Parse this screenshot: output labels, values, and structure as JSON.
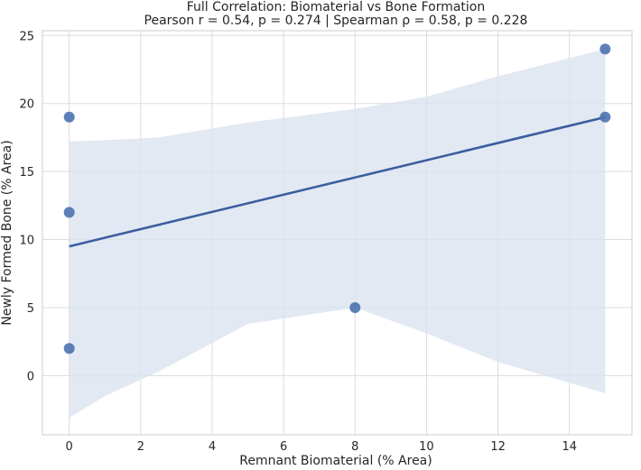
{
  "chart_data": {
    "type": "scatter",
    "title": "Full Correlation: Biomaterial vs Bone Formation",
    "subtitle": "Pearson r = 0.54, p = 0.274 | Spearman ρ = 0.58, p = 0.228",
    "xlabel": "Remnant Biomaterial (% Area)",
    "ylabel": "Newly Formed Bone (% Area)",
    "xlim": [
      -0.75,
      15.75
    ],
    "ylim": [
      -4.35,
      25.35
    ],
    "xticks": [
      0,
      2,
      4,
      6,
      8,
      10,
      12,
      14
    ],
    "yticks": [
      0,
      5,
      10,
      15,
      20,
      25
    ],
    "grid": true,
    "points": [
      {
        "x": 0,
        "y": 19
      },
      {
        "x": 0,
        "y": 12
      },
      {
        "x": 0,
        "y": 2
      },
      {
        "x": 8,
        "y": 5
      },
      {
        "x": 15,
        "y": 24
      },
      {
        "x": 15,
        "y": 19
      }
    ],
    "regression": {
      "intercept": 9.5,
      "slope": 0.633,
      "x_range": [
        0,
        15
      ]
    },
    "confidence_band": {
      "x": [
        0,
        1,
        2.5,
        5,
        8,
        10,
        12,
        15
      ],
      "upper": [
        17.2,
        17.3,
        17.5,
        18.6,
        19.6,
        20.5,
        22.0,
        24.0
      ],
      "lower": [
        -3.1,
        -1.5,
        0.3,
        3.8,
        5.0,
        3.1,
        1.0,
        -1.3
      ]
    },
    "colors": {
      "point": "#4c72b0",
      "line": "#3a5fa0",
      "band": "#dbe3f0",
      "grid": "#dcdcdc"
    }
  }
}
